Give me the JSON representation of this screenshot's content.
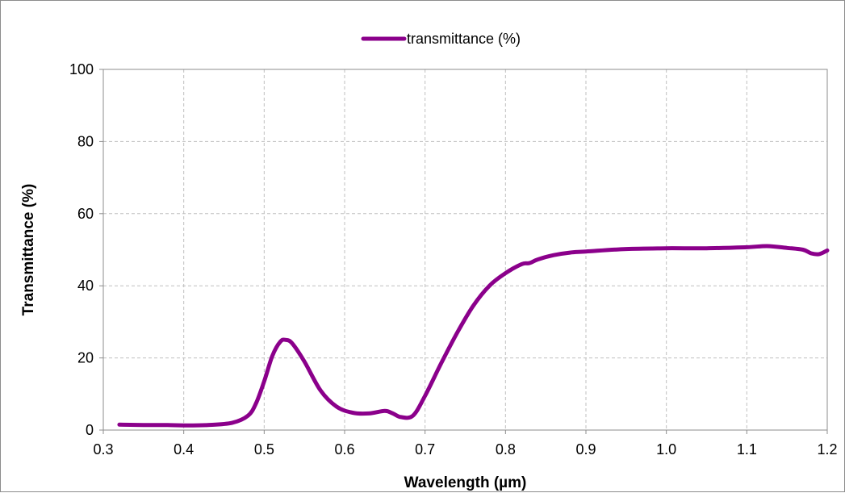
{
  "chart_data": {
    "type": "line",
    "title": "",
    "xlabel": "Wavelength (µm)",
    "ylabel": "Transmittance (%)",
    "xlim": [
      0.3,
      1.2
    ],
    "ylim": [
      0,
      100
    ],
    "x_ticks": [
      0.3,
      0.4,
      0.5,
      0.6,
      0.7,
      0.8,
      0.9,
      1.0,
      1.1,
      1.2
    ],
    "x_tick_labels": [
      "0.3",
      "0.4",
      "0.5",
      "0.6",
      "0.7",
      "0.8",
      "0.9",
      "1.0",
      "1.1",
      "1.2"
    ],
    "y_ticks": [
      0,
      20,
      40,
      60,
      80,
      100
    ],
    "y_tick_labels": [
      "0",
      "20",
      "40",
      "60",
      "80",
      "100"
    ],
    "grid": true,
    "legend_position": "top-center",
    "series": [
      {
        "name": "transmittance (%)",
        "color": "#8b008b",
        "x": [
          0.32,
          0.35,
          0.38,
          0.4,
          0.43,
          0.46,
          0.48,
          0.49,
          0.5,
          0.51,
          0.52,
          0.527,
          0.535,
          0.55,
          0.57,
          0.59,
          0.61,
          0.63,
          0.65,
          0.66,
          0.67,
          0.685,
          0.7,
          0.72,
          0.74,
          0.76,
          0.78,
          0.8,
          0.82,
          0.83,
          0.84,
          0.86,
          0.88,
          0.9,
          0.95,
          1.0,
          1.05,
          1.1,
          1.125,
          1.15,
          1.17,
          1.18,
          1.19,
          1.2
        ],
        "y": [
          1.5,
          1.4,
          1.4,
          1.3,
          1.4,
          2.0,
          4.0,
          7.5,
          13.5,
          20.5,
          24.5,
          25.0,
          24.0,
          19.0,
          11.0,
          6.5,
          4.8,
          4.6,
          5.3,
          4.6,
          3.6,
          4.0,
          9.5,
          18.5,
          27.0,
          34.5,
          40.0,
          43.5,
          46.0,
          46.3,
          47.3,
          48.5,
          49.2,
          49.5,
          50.2,
          50.4,
          50.4,
          50.7,
          51.0,
          50.5,
          50.0,
          49.0,
          48.8,
          49.8
        ]
      }
    ]
  }
}
